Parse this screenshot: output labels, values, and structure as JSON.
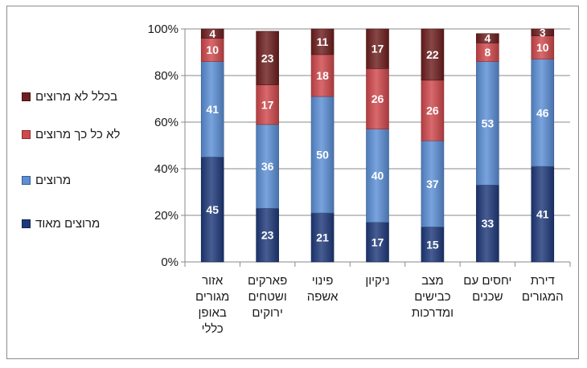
{
  "chart_data": {
    "type": "bar",
    "stacked": true,
    "title": "",
    "xlabel": "",
    "ylabel": "",
    "ylim": [
      0,
      100
    ],
    "y_ticks": [
      "0%",
      "20%",
      "40%",
      "60%",
      "80%",
      "100%"
    ],
    "grid": true,
    "legend_position": "left",
    "categories": [
      "אזור\nמגורים\nבאופן\nכללי",
      "פארקים\nושטחים\nירוקים",
      "פינוי\nאשפה",
      "ניקיון",
      "מצב\nכבישים\nומדרכות",
      "יחסים עם\nשכנים",
      "דירת\nהמגורים"
    ],
    "series": [
      {
        "name": "מרוצים מאוד",
        "color": "#1f3a7a",
        "values": [
          45,
          23,
          21,
          17,
          15,
          33,
          41
        ]
      },
      {
        "name": "מרוצים",
        "color": "#5b8fd6",
        "values": [
          41,
          36,
          50,
          40,
          37,
          53,
          46
        ]
      },
      {
        "name": "לא כל כך מרוצים",
        "color": "#d0484c",
        "values": [
          10,
          17,
          18,
          26,
          26,
          8,
          10
        ]
      },
      {
        "name": "בכלל לא מרוצים",
        "color": "#6e1e1e",
        "values": [
          4,
          23,
          11,
          17,
          22,
          4,
          3
        ]
      }
    ],
    "legend_order": [
      3,
      2,
      1,
      0
    ]
  }
}
